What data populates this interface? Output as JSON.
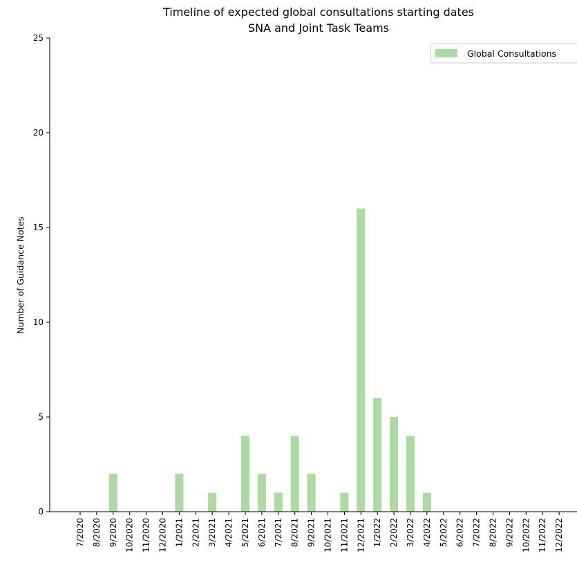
{
  "chart_data": {
    "type": "bar",
    "title": "Timeline of expected global consultations starting dates",
    "subtitle": "SNA and Joint Task Teams",
    "xlabel": "",
    "ylabel": "Number of Guidance Notes",
    "ylim": [
      0,
      25
    ],
    "yticks": [
      0,
      5,
      10,
      15,
      20,
      25
    ],
    "grid": false,
    "legend_position": "top-right",
    "categories": [
      "7/2020",
      "8/2020",
      "9/2020",
      "10/2020",
      "11/2020",
      "12/2020",
      "1/2021",
      "2/2021",
      "3/2021",
      "4/2021",
      "5/2021",
      "6/2021",
      "7/2021",
      "8/2021",
      "9/2021",
      "10/2021",
      "11/2021",
      "12/2021",
      "1/2022",
      "2/2022",
      "3/2022",
      "4/2022",
      "5/2022",
      "6/2022",
      "7/2022",
      "8/2022",
      "9/2022",
      "10/2022",
      "11/2022",
      "12/2022"
    ],
    "series": [
      {
        "name": "Global Consultations",
        "color": "#abdaa3",
        "values": [
          0,
          0,
          2,
          0,
          0,
          0,
          2,
          0,
          1,
          0,
          4,
          2,
          1,
          4,
          2,
          0,
          1,
          16,
          6,
          5,
          4,
          1,
          0,
          0,
          0,
          0,
          0,
          0,
          0,
          0
        ]
      }
    ]
  }
}
